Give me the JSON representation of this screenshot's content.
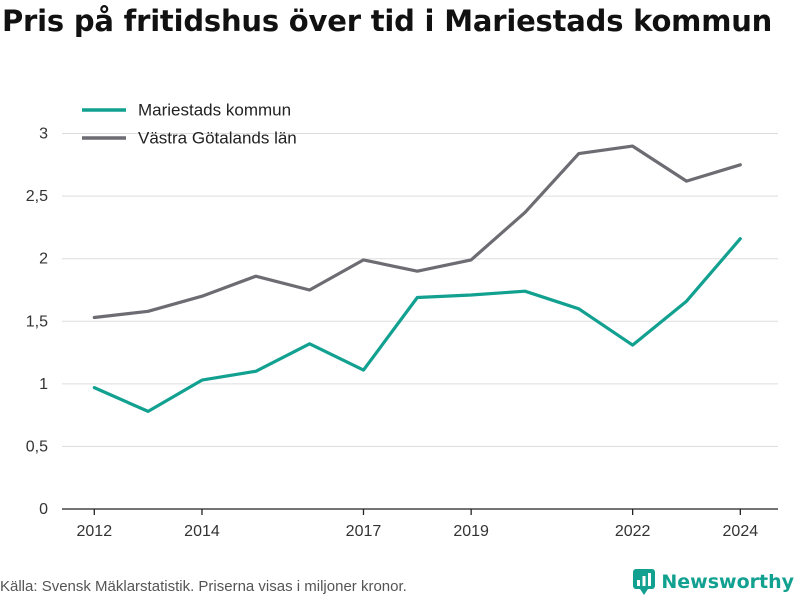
{
  "title": "Pris på fritidshus över tid i Mariestads kommun",
  "source": "Källa: Svensk Mäklarstatistik. Priserna visas i miljoner kronor.",
  "brand": {
    "name": "Newsworthy",
    "icon": "newsworthy-logo-icon",
    "color": "#12a190"
  },
  "chart_data": {
    "type": "line",
    "title": "Pris på fritidshus över tid i Mariestads kommun",
    "xlabel": "",
    "ylabel": "",
    "x": [
      2012,
      2013,
      2014,
      2015,
      2016,
      2017,
      2018,
      2019,
      2020,
      2021,
      2022,
      2023,
      2024
    ],
    "x_ticks": [
      2012,
      2014,
      2017,
      2019,
      2022,
      2024
    ],
    "y_ticks": [
      0,
      0.5,
      1,
      1.5,
      2,
      2.5,
      3
    ],
    "y_tick_labels": [
      "0",
      "0,5",
      "1",
      "1,5",
      "2",
      "2,5",
      "3"
    ],
    "ylim": [
      0,
      3.3
    ],
    "xlim": [
      2011.4,
      2024.7
    ],
    "grid": true,
    "legend_position": "top-left",
    "series": [
      {
        "name": "Mariestads kommun",
        "color": "#12a190",
        "values": [
          0.97,
          0.78,
          1.03,
          1.1,
          1.32,
          1.11,
          1.69,
          1.71,
          1.74,
          1.6,
          1.31,
          1.66,
          2.16
        ]
      },
      {
        "name": "Västra Götalands län",
        "color": "#6d6c73",
        "values": [
          1.53,
          1.58,
          1.7,
          1.86,
          1.75,
          1.99,
          1.9,
          1.99,
          2.37,
          2.84,
          2.9,
          2.62,
          2.75
        ]
      }
    ]
  }
}
